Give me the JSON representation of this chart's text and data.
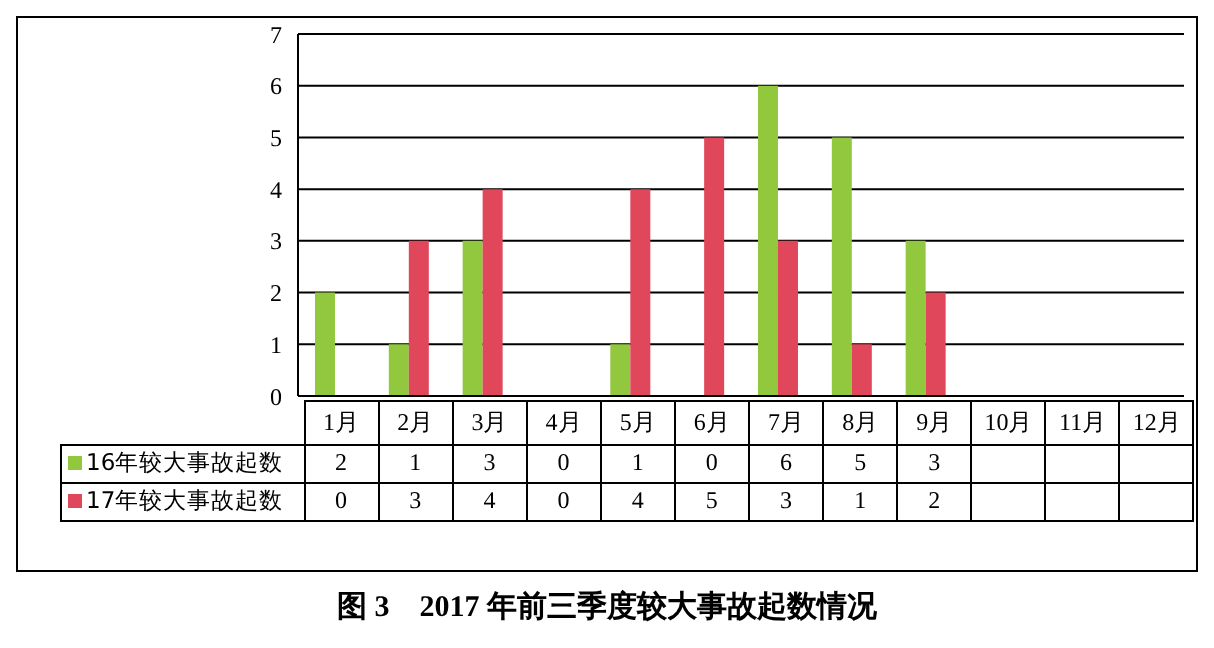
{
  "chart_data": {
    "type": "bar",
    "title": "图 3　2017 年前三季度较大事故起数情况",
    "categories": [
      "1月",
      "2月",
      "3月",
      "4月",
      "5月",
      "6月",
      "7月",
      "8月",
      "9月",
      "10月",
      "11月",
      "12月"
    ],
    "series": [
      {
        "name": "16年较大事故起数",
        "color": "#92c83e",
        "values": [
          2,
          1,
          3,
          0,
          1,
          0,
          6,
          5,
          3,
          null,
          null,
          null
        ]
      },
      {
        "name": "17年较大事故起数",
        "color": "#e0475b",
        "values": [
          0,
          3,
          4,
          0,
          4,
          5,
          3,
          1,
          2,
          null,
          null,
          null
        ]
      }
    ],
    "ylim": [
      0,
      7
    ],
    "yticks": [
      0,
      1,
      2,
      3,
      4,
      5,
      6,
      7
    ],
    "grid": "y",
    "legend": "bottom left",
    "data_labels": true
  }
}
